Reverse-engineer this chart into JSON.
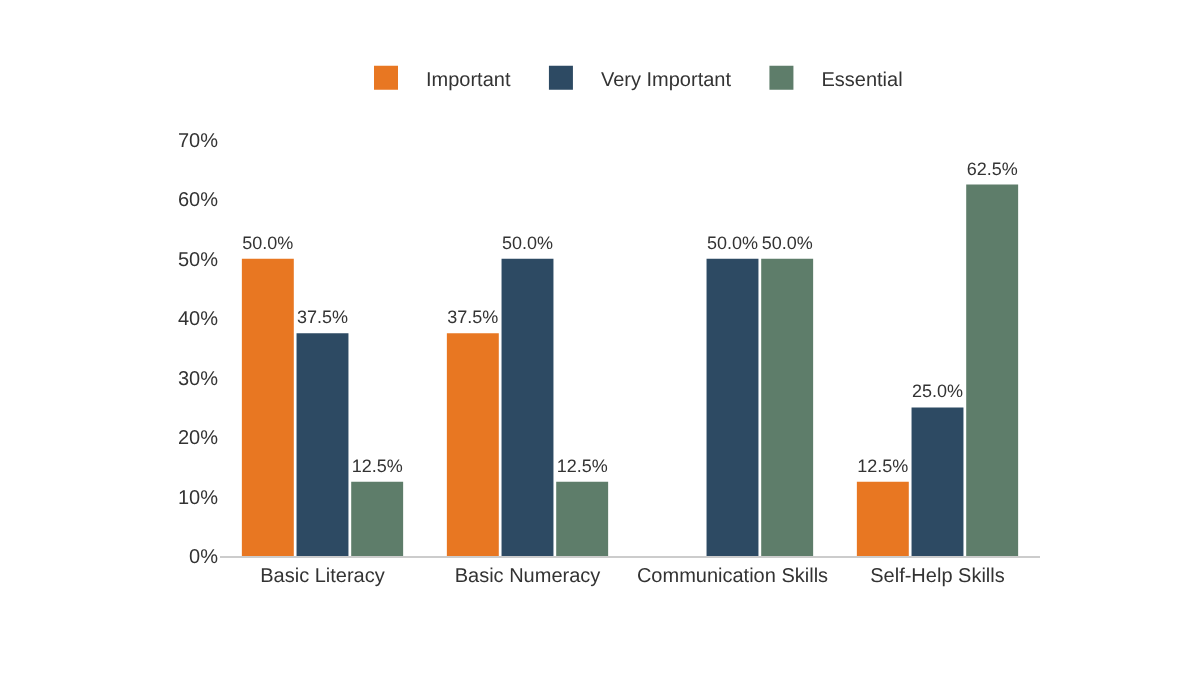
{
  "chart_data": {
    "type": "bar",
    "categories": [
      "Basic Literacy",
      "Basic Numeracy",
      "Communication Skills",
      "Self-Help Skills"
    ],
    "series": [
      {
        "name": "Important",
        "color": "#e87722",
        "values": [
          50.0,
          37.5,
          null,
          12.5
        ],
        "value_labels": [
          "50.0%",
          "37.5%",
          null,
          "12.5%"
        ]
      },
      {
        "name": "Very Important",
        "color": "#2d4a63",
        "values": [
          37.5,
          50.0,
          50.0,
          25.0
        ],
        "value_labels": [
          "37.5%",
          "50.0%",
          "50.0%",
          "25.0%"
        ]
      },
      {
        "name": "Essential",
        "color": "#5e7d6a",
        "values": [
          12.5,
          12.5,
          50.0,
          62.5
        ],
        "value_labels": [
          "12.5%",
          "12.5%",
          "50.0%",
          "62.5%"
        ]
      }
    ],
    "ylim": [
      0,
      70
    ],
    "yticks": [
      {
        "value": 0,
        "label": "0%"
      },
      {
        "value": 10,
        "label": "10%"
      },
      {
        "value": 20,
        "label": "20%"
      },
      {
        "value": 30,
        "label": "30%"
      },
      {
        "value": 40,
        "label": "40%"
      },
      {
        "value": 50,
        "label": "50%"
      },
      {
        "value": 60,
        "label": "60%"
      },
      {
        "value": 70,
        "label": "70%"
      }
    ],
    "legend": "top",
    "grid": false
  }
}
